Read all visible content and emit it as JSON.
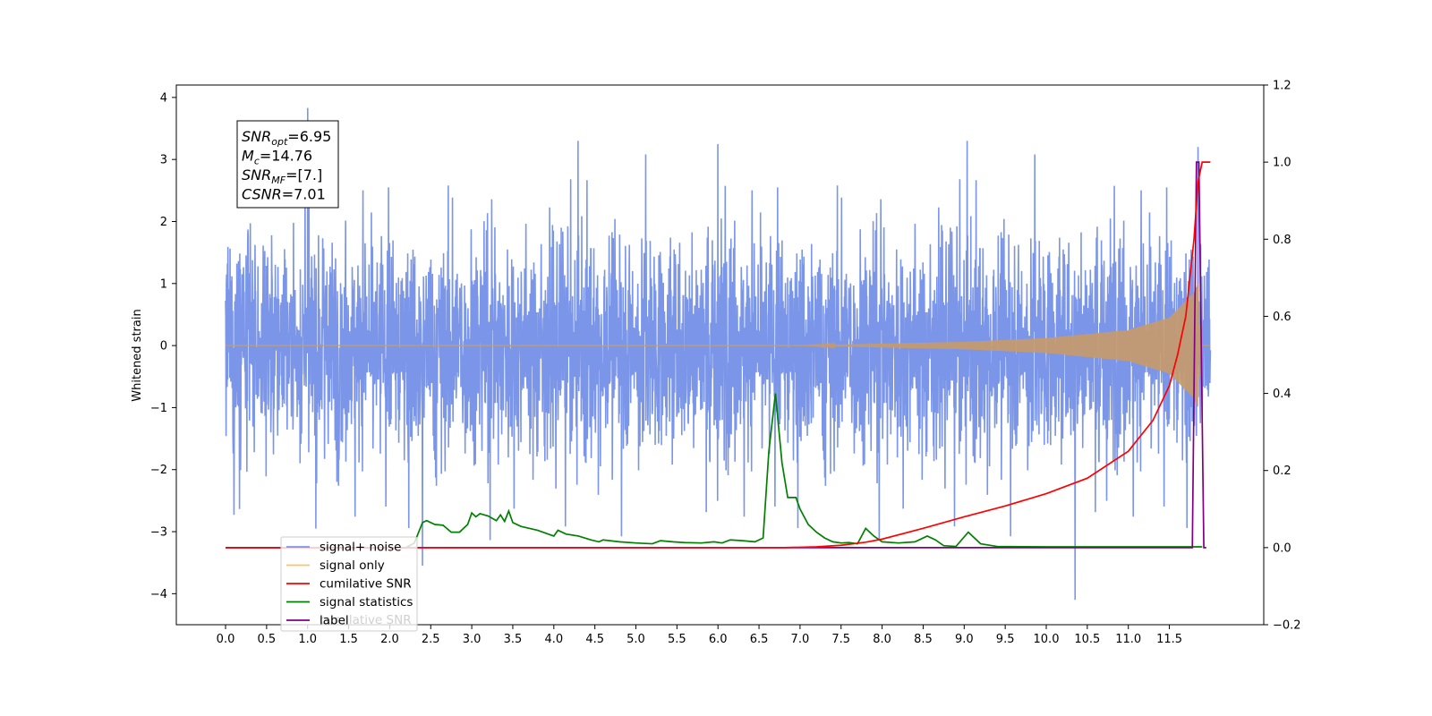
{
  "chart_data": {
    "type": "line",
    "title": "",
    "xlabel": "",
    "ylabel": "Whitened strain",
    "xlim": [
      -0.6,
      12.65
    ],
    "ylim_left": [
      -4.5,
      4.2
    ],
    "ylim_right": [
      -0.2,
      1.2
    ],
    "x_ticks": [
      0.0,
      0.5,
      1.0,
      1.5,
      2.0,
      2.5,
      3.0,
      3.5,
      4.0,
      4.5,
      5.0,
      5.5,
      6.0,
      6.5,
      7.0,
      7.5,
      8.0,
      8.5,
      9.0,
      9.5,
      10.0,
      10.5,
      11.0,
      11.5
    ],
    "x_tick_labels": [
      "0.0",
      "0.5",
      "1.0",
      "1.5",
      "2.0",
      "2.5",
      "3.0",
      "3.5",
      "4.0",
      "4.5",
      "5.0",
      "5.5",
      "6.0",
      "6.5",
      "7.0",
      "7.5",
      "8.0",
      "8.5",
      "9.0",
      "9.5",
      "10.0",
      "10.5",
      "11.0",
      "11.5"
    ],
    "y_left_ticks": [
      4,
      3,
      2,
      1,
      0,
      -1,
      -2,
      -3,
      -4
    ],
    "y_left_tick_labels": [
      "4",
      "3",
      "2",
      "1",
      "0",
      "−1",
      "−2",
      "−3",
      "−4"
    ],
    "y_right_ticks": [
      1.2,
      1.0,
      0.8,
      0.6,
      0.4,
      0.2,
      0.0,
      -0.2
    ],
    "y_right_tick_labels": [
      "1.2",
      "1.0",
      "0.8",
      "0.6",
      "0.4",
      "0.2",
      "0.0",
      "−0.2"
    ],
    "annotation": {
      "lines": [
        {
          "base": "SNR",
          "sub": "opt",
          "value": "=6.95"
        },
        {
          "base": "M",
          "sub": "c",
          "value": "=14.76"
        },
        {
          "base": "SNR",
          "sub": "MF",
          "value": "=[7.]"
        },
        {
          "base": "CSNR",
          "sub": "",
          "value": "=7.01"
        }
      ]
    },
    "legend_position": "lower-left",
    "legend_entries": [
      {
        "label": "signal+ noise",
        "color": "#7b96e8"
      },
      {
        "label": "signal only",
        "color": "#ffc066"
      },
      {
        "label": "cumilative SNR",
        "color": "#ff0000"
      },
      {
        "label": "signal statistics",
        "color": "#008000"
      },
      {
        "label": "label",
        "color": "#800080"
      }
    ],
    "legend_ghost_text": "cumilative SNR",
    "series": [
      {
        "name": "signal+ noise",
        "axis": "left",
        "color": "#7b96e8",
        "x_range": [
          0.0,
          12.0
        ],
        "baseline": 0.0,
        "noise_sigma": 0.85,
        "spike_max": 3.83,
        "spike_min": -4.1
      },
      {
        "name": "signal only",
        "axis": "left",
        "color": "#c89a6a",
        "x_range": [
          0.0,
          12.0
        ],
        "envelope": [
          [
            0.0,
            0.0
          ],
          [
            7.0,
            0.0
          ],
          [
            8.0,
            0.03
          ],
          [
            9.0,
            0.06
          ],
          [
            10.0,
            0.12
          ],
          [
            11.0,
            0.25
          ],
          [
            11.5,
            0.45
          ],
          [
            11.8,
            0.85
          ],
          [
            11.85,
            1.0
          ],
          [
            11.88,
            0.0
          ],
          [
            12.0,
            0.0
          ]
        ]
      },
      {
        "name": "cumilative SNR",
        "axis": "right",
        "color": "#ff0000",
        "points": [
          [
            0.0,
            0.0
          ],
          [
            6.8,
            0.0
          ],
          [
            7.2,
            0.002
          ],
          [
            7.5,
            0.006
          ],
          [
            7.8,
            0.014
          ],
          [
            8.0,
            0.022
          ],
          [
            8.5,
            0.05
          ],
          [
            9.0,
            0.08
          ],
          [
            9.5,
            0.108
          ],
          [
            10.0,
            0.14
          ],
          [
            10.5,
            0.18
          ],
          [
            11.0,
            0.25
          ],
          [
            11.3,
            0.33
          ],
          [
            11.5,
            0.42
          ],
          [
            11.6,
            0.5
          ],
          [
            11.7,
            0.6
          ],
          [
            11.75,
            0.7
          ],
          [
            11.8,
            0.8
          ],
          [
            11.85,
            0.95
          ],
          [
            11.9,
            1.0
          ],
          [
            12.0,
            1.0
          ]
        ]
      },
      {
        "name": "signal statistics",
        "axis": "right",
        "color": "#008000",
        "points": [
          [
            0.0,
            0.0
          ],
          [
            2.2,
            0.0
          ],
          [
            2.3,
            0.012
          ],
          [
            2.4,
            0.065
          ],
          [
            2.45,
            0.07
          ],
          [
            2.55,
            0.06
          ],
          [
            2.65,
            0.058
          ],
          [
            2.75,
            0.04
          ],
          [
            2.85,
            0.04
          ],
          [
            2.95,
            0.06
          ],
          [
            3.0,
            0.09
          ],
          [
            3.05,
            0.08
          ],
          [
            3.1,
            0.088
          ],
          [
            3.2,
            0.082
          ],
          [
            3.3,
            0.07
          ],
          [
            3.35,
            0.085
          ],
          [
            3.4,
            0.068
          ],
          [
            3.45,
            0.095
          ],
          [
            3.5,
            0.065
          ],
          [
            3.6,
            0.055
          ],
          [
            3.7,
            0.05
          ],
          [
            3.8,
            0.045
          ],
          [
            4.0,
            0.03
          ],
          [
            4.05,
            0.045
          ],
          [
            4.15,
            0.035
          ],
          [
            4.3,
            0.03
          ],
          [
            4.45,
            0.02
          ],
          [
            4.55,
            0.015
          ],
          [
            4.6,
            0.02
          ],
          [
            4.8,
            0.015
          ],
          [
            5.0,
            0.012
          ],
          [
            5.2,
            0.01
          ],
          [
            5.3,
            0.018
          ],
          [
            5.45,
            0.015
          ],
          [
            5.6,
            0.013
          ],
          [
            5.8,
            0.012
          ],
          [
            5.95,
            0.015
          ],
          [
            6.05,
            0.012
          ],
          [
            6.15,
            0.02
          ],
          [
            6.3,
            0.018
          ],
          [
            6.45,
            0.015
          ],
          [
            6.55,
            0.025
          ],
          [
            6.62,
            0.25
          ],
          [
            6.7,
            0.4
          ],
          [
            6.78,
            0.22
          ],
          [
            6.85,
            0.13
          ],
          [
            6.95,
            0.13
          ],
          [
            7.0,
            0.1
          ],
          [
            7.1,
            0.06
          ],
          [
            7.2,
            0.04
          ],
          [
            7.3,
            0.025
          ],
          [
            7.4,
            0.015
          ],
          [
            7.5,
            0.012
          ],
          [
            7.6,
            0.013
          ],
          [
            7.7,
            0.01
          ],
          [
            7.8,
            0.05
          ],
          [
            7.9,
            0.03
          ],
          [
            8.0,
            0.015
          ],
          [
            8.2,
            0.012
          ],
          [
            8.4,
            0.015
          ],
          [
            8.55,
            0.03
          ],
          [
            8.65,
            0.02
          ],
          [
            8.75,
            0.005
          ],
          [
            8.9,
            0.003
          ],
          [
            9.05,
            0.04
          ],
          [
            9.2,
            0.01
          ],
          [
            9.4,
            0.003
          ],
          [
            10.0,
            0.002
          ],
          [
            11.0,
            0.002
          ],
          [
            11.5,
            0.002
          ],
          [
            11.9,
            0.002
          ]
        ]
      },
      {
        "name": "label",
        "axis": "right",
        "color": "#800080",
        "points": [
          [
            0.0,
            0.0
          ],
          [
            11.78,
            0.0
          ],
          [
            11.83,
            1.0
          ],
          [
            11.86,
            1.0
          ],
          [
            11.92,
            0.0
          ],
          [
            11.95,
            0.0
          ]
        ]
      }
    ]
  }
}
